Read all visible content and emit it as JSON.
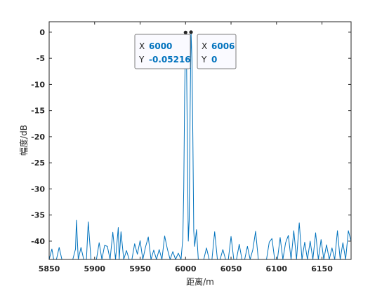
{
  "chart_data": {
    "type": "line",
    "xlabel": "距离/m",
    "ylabel": "幅度/dB",
    "xlim": [
      5850,
      6182
    ],
    "ylim": [
      -43.5,
      2
    ],
    "xticks": [
      5850,
      5900,
      5950,
      6000,
      6050,
      6100,
      6150
    ],
    "yticks": [
      0,
      -5,
      -10,
      -15,
      -20,
      -25,
      -30,
      -35,
      -40
    ],
    "grid": false,
    "line_color": "#0072bd",
    "series": [
      {
        "x": [
          5850,
          5853,
          5855,
          5858,
          5861,
          5864,
          5867,
          5870,
          5873,
          5876,
          5879,
          5880,
          5882,
          5885,
          5888,
          5891,
          5893,
          5896,
          5899,
          5902,
          5905,
          5908,
          5911,
          5914,
          5917,
          5920,
          5923,
          5926,
          5927,
          5929,
          5932,
          5935,
          5938,
          5941,
          5944,
          5947,
          5950,
          5953,
          5956,
          5959,
          5962,
          5965,
          5968,
          5971,
          5974,
          5977,
          5980,
          5983,
          5986,
          5989,
          5992,
          5995,
          5997,
          5998,
          5999,
          6000,
          6001,
          6002,
          6003,
          6004,
          6005,
          6006,
          6007,
          6008,
          6009,
          6010,
          6012,
          6014,
          6017,
          6020,
          6023,
          6026,
          6029,
          6032,
          6035,
          6038,
          6041,
          6044,
          6047,
          6050,
          6053,
          6056,
          6059,
          6062,
          6065,
          6068,
          6071,
          6074,
          6077,
          6080,
          6083,
          6086,
          6089,
          6092,
          6095,
          6098,
          6101,
          6104,
          6107,
          6110,
          6113,
          6116,
          6119,
          6122,
          6125,
          6128,
          6131,
          6134,
          6137,
          6140,
          6143,
          6146,
          6149,
          6152,
          6155,
          6158,
          6161,
          6164,
          6167,
          6170,
          6173,
          6176,
          6179,
          6182
        ],
        "values": [
          -43.5,
          -41.5,
          -43.5,
          -43.5,
          -41.2,
          -43.5,
          -43.5,
          -43.5,
          -43.5,
          -43.5,
          -41.5,
          -36.0,
          -43.5,
          -41.2,
          -43.5,
          -43.5,
          -36.3,
          -43.5,
          -43.5,
          -43.5,
          -40.3,
          -43.5,
          -40.8,
          -41.0,
          -43.5,
          -38.3,
          -43.5,
          -37.4,
          -43.5,
          -38.2,
          -43.5,
          -41.8,
          -43.5,
          -43.5,
          -40.5,
          -42.5,
          -39.9,
          -43.5,
          -41.1,
          -39.2,
          -43.5,
          -41.7,
          -43.5,
          -41.6,
          -43.5,
          -39.0,
          -41.5,
          -43.5,
          -42.0,
          -43.5,
          -42.3,
          -43.5,
          -39.5,
          -30.0,
          -12.0,
          -0.05216,
          -4.0,
          -22.0,
          -40.0,
          -36.0,
          -15.0,
          0.0,
          -5.0,
          -20.0,
          -38.0,
          -41.0,
          -37.8,
          -43.5,
          -43.5,
          -43.5,
          -41.3,
          -43.5,
          -43.5,
          -38.2,
          -43.5,
          -43.5,
          -41.6,
          -43.5,
          -43.5,
          -39.1,
          -43.5,
          -43.5,
          -40.6,
          -43.5,
          -43.5,
          -41.0,
          -43.5,
          -41.6,
          -38.1,
          -43.5,
          -43.5,
          -43.5,
          -43.5,
          -40.2,
          -39.5,
          -43.5,
          -43.5,
          -39.3,
          -43.5,
          -40.3,
          -38.9,
          -43.5,
          -38.0,
          -43.5,
          -36.5,
          -43.5,
          -40.2,
          -43.5,
          -40.0,
          -43.5,
          -38.4,
          -43.5,
          -39.7,
          -43.5,
          -40.7,
          -43.5,
          -41.3,
          -43.5,
          -38.0,
          -43.5,
          -40.3,
          -43.5,
          -38.0,
          -40.0
        ]
      }
    ],
    "datatips": [
      {
        "x_key": "X",
        "x": "6000",
        "y_key": "Y",
        "y": "-0.05216",
        "x_value": 6000,
        "y_value": -0.05216
      },
      {
        "x_key": "X",
        "x": "6006",
        "y_key": "Y",
        "y": "0",
        "x_value": 6006,
        "y_value": 0
      }
    ]
  }
}
